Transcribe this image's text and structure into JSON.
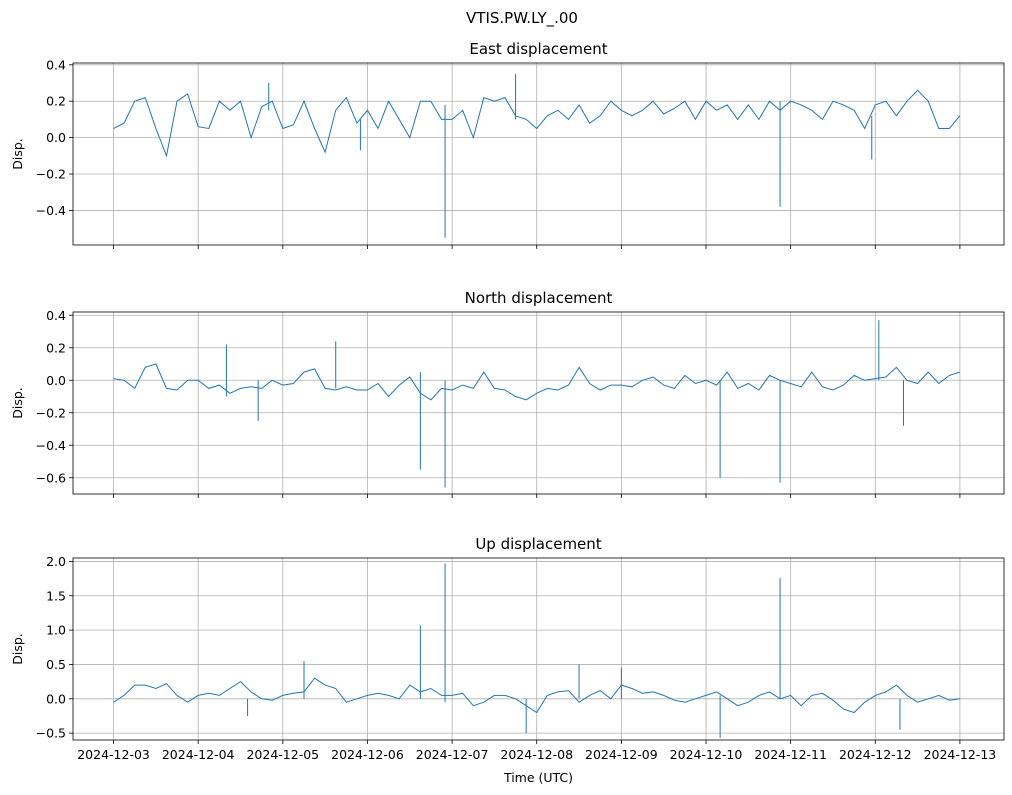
{
  "figure": {
    "suptitle": "VTIS.PW.LY_.00"
  },
  "colors": {
    "line": "#1f77b4",
    "grid": "#b0b0b0",
    "axes": "#000000"
  },
  "chart_data": [
    {
      "type": "line",
      "title": "East displacement",
      "xlabel": "",
      "ylabel": "Disp.",
      "xlim": [
        "2024-12-02T12:30",
        "2024-12-13T12:30"
      ],
      "ylim": [
        -0.59,
        0.41
      ],
      "yticks": [
        0.4,
        0.2,
        0.0,
        -0.2,
        -0.4
      ],
      "ytick_labels": [
        "0.4",
        "0.2",
        "0.0",
        "−0.2",
        "−0.4"
      ],
      "xticks": [
        "2024-12-03",
        "2024-12-04",
        "2024-12-05",
        "2024-12-06",
        "2024-12-07",
        "2024-12-08",
        "2024-12-09",
        "2024-12-10",
        "2024-12-11",
        "2024-12-12",
        "2024-12-13"
      ],
      "show_xtick_labels": false,
      "grid": true,
      "series": [
        {
          "name": "",
          "x": [
            "2024-12-03T00:00",
            "2024-12-03T03:00",
            "2024-12-03T06:00",
            "2024-12-03T09:00",
            "2024-12-03T12:00",
            "2024-12-03T15:00",
            "2024-12-03T18:00",
            "2024-12-03T21:00",
            "2024-12-04T00:00",
            "2024-12-04T03:00",
            "2024-12-04T06:00",
            "2024-12-04T09:00",
            "2024-12-04T12:00",
            "2024-12-04T15:00",
            "2024-12-04T18:00",
            "2024-12-04T21:00",
            "2024-12-05T00:00",
            "2024-12-05T03:00",
            "2024-12-05T06:00",
            "2024-12-05T09:00",
            "2024-12-05T12:00",
            "2024-12-05T15:00",
            "2024-12-05T18:00",
            "2024-12-05T21:00",
            "2024-12-06T00:00",
            "2024-12-06T03:00",
            "2024-12-06T06:00",
            "2024-12-06T09:00",
            "2024-12-06T12:00",
            "2024-12-06T15:00",
            "2024-12-06T18:00",
            "2024-12-06T21:00",
            "2024-12-07T00:00",
            "2024-12-07T03:00",
            "2024-12-07T06:00",
            "2024-12-07T09:00",
            "2024-12-07T12:00",
            "2024-12-07T15:00",
            "2024-12-07T18:00",
            "2024-12-07T21:00",
            "2024-12-08T00:00",
            "2024-12-08T03:00",
            "2024-12-08T06:00",
            "2024-12-08T09:00",
            "2024-12-08T12:00",
            "2024-12-08T15:00",
            "2024-12-08T18:00",
            "2024-12-08T21:00",
            "2024-12-09T00:00",
            "2024-12-09T03:00",
            "2024-12-09T06:00",
            "2024-12-09T09:00",
            "2024-12-09T12:00",
            "2024-12-09T15:00",
            "2024-12-09T18:00",
            "2024-12-09T21:00",
            "2024-12-10T00:00",
            "2024-12-10T03:00",
            "2024-12-10T06:00",
            "2024-12-10T09:00",
            "2024-12-10T12:00",
            "2024-12-10T15:00",
            "2024-12-10T18:00",
            "2024-12-10T21:00",
            "2024-12-11T00:00",
            "2024-12-11T03:00",
            "2024-12-11T06:00",
            "2024-12-11T09:00",
            "2024-12-11T12:00",
            "2024-12-11T15:00",
            "2024-12-11T18:00",
            "2024-12-11T21:00",
            "2024-12-12T00:00",
            "2024-12-12T03:00",
            "2024-12-12T06:00",
            "2024-12-12T09:00",
            "2024-12-12T12:00",
            "2024-12-12T15:00",
            "2024-12-12T18:00",
            "2024-12-12T21:00",
            "2024-12-13T00:00"
          ],
          "y": [
            0.05,
            0.08,
            0.2,
            0.22,
            0.05,
            -0.1,
            0.2,
            0.24,
            0.06,
            0.05,
            0.2,
            0.15,
            0.2,
            0.0,
            0.17,
            0.2,
            0.05,
            0.07,
            0.2,
            0.05,
            -0.08,
            0.15,
            0.22,
            0.08,
            0.15,
            0.05,
            0.2,
            0.1,
            0.0,
            0.2,
            0.2,
            0.1,
            0.1,
            0.15,
            0.0,
            0.22,
            0.2,
            0.22,
            0.12,
            0.1,
            0.05,
            0.12,
            0.15,
            0.1,
            0.18,
            0.08,
            0.12,
            0.2,
            0.15,
            0.12,
            0.15,
            0.2,
            0.13,
            0.16,
            0.2,
            0.1,
            0.2,
            0.15,
            0.18,
            0.1,
            0.18,
            0.1,
            0.2,
            0.15,
            0.2,
            0.18,
            0.15,
            0.1,
            0.2,
            0.18,
            0.15,
            0.05,
            0.18,
            0.2,
            0.12,
            0.2,
            0.26,
            0.2,
            0.05,
            0.05,
            0.12
          ]
        }
      ],
      "spikes": [
        {
          "x": "2024-12-06T22:00",
          "low": -0.55,
          "high": 0.18
        },
        {
          "x": "2024-12-10T21:00",
          "low": -0.38,
          "high": 0.2
        },
        {
          "x": "2024-12-07T18:00",
          "low": 0.1,
          "high": 0.35
        },
        {
          "x": "2024-12-04T20:00",
          "low": 0.15,
          "high": 0.3
        },
        {
          "x": "2024-12-11T23:00",
          "low": -0.12,
          "high": 0.12
        },
        {
          "x": "2024-12-05T22:00",
          "low": -0.07,
          "high": 0.1
        }
      ]
    },
    {
      "type": "line",
      "title": "North displacement",
      "xlabel": "",
      "ylabel": "Disp.",
      "xlim": [
        "2024-12-02T12:30",
        "2024-12-13T12:30"
      ],
      "ylim": [
        -0.7,
        0.42
      ],
      "yticks": [
        0.4,
        0.2,
        0.0,
        -0.2,
        -0.4,
        -0.6
      ],
      "ytick_labels": [
        "0.4",
        "0.2",
        "0.0",
        "−0.2",
        "−0.4",
        "−0.6"
      ],
      "xticks": [
        "2024-12-03",
        "2024-12-04",
        "2024-12-05",
        "2024-12-06",
        "2024-12-07",
        "2024-12-08",
        "2024-12-09",
        "2024-12-10",
        "2024-12-11",
        "2024-12-12",
        "2024-12-13"
      ],
      "show_xtick_labels": false,
      "grid": true,
      "series": [
        {
          "name": "",
          "x": [
            "2024-12-03T00:00",
            "2024-12-03T03:00",
            "2024-12-03T06:00",
            "2024-12-03T09:00",
            "2024-12-03T12:00",
            "2024-12-03T15:00",
            "2024-12-03T18:00",
            "2024-12-03T21:00",
            "2024-12-04T00:00",
            "2024-12-04T03:00",
            "2024-12-04T06:00",
            "2024-12-04T09:00",
            "2024-12-04T12:00",
            "2024-12-04T15:00",
            "2024-12-04T18:00",
            "2024-12-04T21:00",
            "2024-12-05T00:00",
            "2024-12-05T03:00",
            "2024-12-05T06:00",
            "2024-12-05T09:00",
            "2024-12-05T12:00",
            "2024-12-05T15:00",
            "2024-12-05T18:00",
            "2024-12-05T21:00",
            "2024-12-06T00:00",
            "2024-12-06T03:00",
            "2024-12-06T06:00",
            "2024-12-06T09:00",
            "2024-12-06T12:00",
            "2024-12-06T15:00",
            "2024-12-06T18:00",
            "2024-12-06T21:00",
            "2024-12-07T00:00",
            "2024-12-07T03:00",
            "2024-12-07T06:00",
            "2024-12-07T09:00",
            "2024-12-07T12:00",
            "2024-12-07T15:00",
            "2024-12-07T18:00",
            "2024-12-07T21:00",
            "2024-12-08T00:00",
            "2024-12-08T03:00",
            "2024-12-08T06:00",
            "2024-12-08T09:00",
            "2024-12-08T12:00",
            "2024-12-08T15:00",
            "2024-12-08T18:00",
            "2024-12-08T21:00",
            "2024-12-09T00:00",
            "2024-12-09T03:00",
            "2024-12-09T06:00",
            "2024-12-09T09:00",
            "2024-12-09T12:00",
            "2024-12-09T15:00",
            "2024-12-09T18:00",
            "2024-12-09T21:00",
            "2024-12-10T00:00",
            "2024-12-10T03:00",
            "2024-12-10T06:00",
            "2024-12-10T09:00",
            "2024-12-10T12:00",
            "2024-12-10T15:00",
            "2024-12-10T18:00",
            "2024-12-10T21:00",
            "2024-12-11T00:00",
            "2024-12-11T03:00",
            "2024-12-11T06:00",
            "2024-12-11T09:00",
            "2024-12-11T12:00",
            "2024-12-11T15:00",
            "2024-12-11T18:00",
            "2024-12-11T21:00",
            "2024-12-12T00:00",
            "2024-12-12T03:00",
            "2024-12-12T06:00",
            "2024-12-12T09:00",
            "2024-12-12T12:00",
            "2024-12-12T15:00",
            "2024-12-12T18:00",
            "2024-12-12T21:00",
            "2024-12-13T00:00"
          ],
          "y": [
            0.01,
            0.0,
            -0.05,
            0.08,
            0.1,
            -0.05,
            -0.06,
            0.0,
            0.0,
            -0.05,
            -0.03,
            -0.08,
            -0.05,
            -0.04,
            -0.05,
            0.0,
            -0.03,
            -0.02,
            0.05,
            0.07,
            -0.05,
            -0.06,
            -0.04,
            -0.06,
            -0.06,
            -0.02,
            -0.1,
            -0.03,
            0.02,
            -0.08,
            -0.12,
            -0.05,
            -0.06,
            -0.03,
            -0.05,
            0.05,
            -0.05,
            -0.06,
            -0.1,
            -0.12,
            -0.08,
            -0.05,
            -0.06,
            -0.03,
            0.08,
            -0.02,
            -0.06,
            -0.03,
            -0.03,
            -0.04,
            0.0,
            0.02,
            -0.03,
            -0.05,
            0.03,
            -0.02,
            0.0,
            -0.03,
            0.05,
            -0.05,
            -0.02,
            -0.06,
            0.03,
            0.0,
            -0.02,
            -0.04,
            0.05,
            -0.04,
            -0.06,
            -0.03,
            0.03,
            0.0,
            0.01,
            0.02,
            0.08,
            0.0,
            -0.02,
            0.05,
            -0.02,
            0.03,
            0.05
          ]
        }
      ],
      "spikes": [
        {
          "x": "2024-12-06T15:00",
          "low": -0.55,
          "high": 0.05
        },
        {
          "x": "2024-12-06T22:00",
          "low": -0.66,
          "high": 0.0
        },
        {
          "x": "2024-12-10T04:00",
          "low": -0.6,
          "high": 0.0
        },
        {
          "x": "2024-12-10T21:00",
          "low": -0.63,
          "high": 0.0
        },
        {
          "x": "2024-12-12T01:00",
          "low": 0.0,
          "high": 0.37
        },
        {
          "x": "2024-12-12T08:00",
          "low": -0.28,
          "high": 0.0
        },
        {
          "x": "2024-12-05T15:00",
          "low": -0.05,
          "high": 0.24
        },
        {
          "x": "2024-12-04T08:00",
          "low": -0.1,
          "high": 0.22
        },
        {
          "x": "2024-12-04T17:00",
          "low": -0.25,
          "high": 0.0
        }
      ]
    },
    {
      "type": "line",
      "title": "Up displacement",
      "xlabel": "Time (UTC)",
      "ylabel": "Disp.",
      "xlim": [
        "2024-12-02T12:30",
        "2024-12-13T12:30"
      ],
      "ylim": [
        -0.6,
        2.05
      ],
      "yticks": [
        2.0,
        1.5,
        1.0,
        0.5,
        0.0,
        -0.5
      ],
      "ytick_labels": [
        "2.0",
        "1.5",
        "1.0",
        "0.5",
        "0.0",
        "−0.5"
      ],
      "xticks": [
        "2024-12-03",
        "2024-12-04",
        "2024-12-05",
        "2024-12-06",
        "2024-12-07",
        "2024-12-08",
        "2024-12-09",
        "2024-12-10",
        "2024-12-11",
        "2024-12-12",
        "2024-12-13"
      ],
      "show_xtick_labels": true,
      "grid": true,
      "series": [
        {
          "name": "",
          "x": [
            "2024-12-03T00:00",
            "2024-12-03T03:00",
            "2024-12-03T06:00",
            "2024-12-03T09:00",
            "2024-12-03T12:00",
            "2024-12-03T15:00",
            "2024-12-03T18:00",
            "2024-12-03T21:00",
            "2024-12-04T00:00",
            "2024-12-04T03:00",
            "2024-12-04T06:00",
            "2024-12-04T09:00",
            "2024-12-04T12:00",
            "2024-12-04T15:00",
            "2024-12-04T18:00",
            "2024-12-04T21:00",
            "2024-12-05T00:00",
            "2024-12-05T03:00",
            "2024-12-05T06:00",
            "2024-12-05T09:00",
            "2024-12-05T12:00",
            "2024-12-05T15:00",
            "2024-12-05T18:00",
            "2024-12-05T21:00",
            "2024-12-06T00:00",
            "2024-12-06T03:00",
            "2024-12-06T06:00",
            "2024-12-06T09:00",
            "2024-12-06T12:00",
            "2024-12-06T15:00",
            "2024-12-06T18:00",
            "2024-12-06T21:00",
            "2024-12-07T00:00",
            "2024-12-07T03:00",
            "2024-12-07T06:00",
            "2024-12-07T09:00",
            "2024-12-07T12:00",
            "2024-12-07T15:00",
            "2024-12-07T18:00",
            "2024-12-07T21:00",
            "2024-12-08T00:00",
            "2024-12-08T03:00",
            "2024-12-08T06:00",
            "2024-12-08T09:00",
            "2024-12-08T12:00",
            "2024-12-08T15:00",
            "2024-12-08T18:00",
            "2024-12-08T21:00",
            "2024-12-09T00:00",
            "2024-12-09T03:00",
            "2024-12-09T06:00",
            "2024-12-09T09:00",
            "2024-12-09T12:00",
            "2024-12-09T15:00",
            "2024-12-09T18:00",
            "2024-12-09T21:00",
            "2024-12-10T00:00",
            "2024-12-10T03:00",
            "2024-12-10T06:00",
            "2024-12-10T09:00",
            "2024-12-10T12:00",
            "2024-12-10T15:00",
            "2024-12-10T18:00",
            "2024-12-10T21:00",
            "2024-12-11T00:00",
            "2024-12-11T03:00",
            "2024-12-11T06:00",
            "2024-12-11T09:00",
            "2024-12-11T12:00",
            "2024-12-11T15:00",
            "2024-12-11T18:00",
            "2024-12-11T21:00",
            "2024-12-12T00:00",
            "2024-12-12T03:00",
            "2024-12-12T06:00",
            "2024-12-12T09:00",
            "2024-12-12T12:00",
            "2024-12-12T15:00",
            "2024-12-12T18:00",
            "2024-12-12T21:00",
            "2024-12-13T00:00"
          ],
          "y": [
            -0.05,
            0.05,
            0.2,
            0.2,
            0.15,
            0.22,
            0.05,
            -0.05,
            0.05,
            0.08,
            0.05,
            0.15,
            0.25,
            0.1,
            0.0,
            -0.02,
            0.05,
            0.08,
            0.1,
            0.3,
            0.2,
            0.15,
            -0.05,
            0.0,
            0.05,
            0.08,
            0.05,
            0.0,
            0.2,
            0.1,
            0.15,
            0.05,
            0.05,
            0.08,
            -0.1,
            -0.05,
            0.05,
            0.05,
            0.0,
            -0.1,
            -0.2,
            0.05,
            0.1,
            0.12,
            -0.05,
            0.05,
            0.12,
            0.0,
            0.2,
            0.15,
            0.08,
            0.1,
            0.05,
            -0.02,
            -0.05,
            0.0,
            0.05,
            0.1,
            0.0,
            -0.1,
            -0.05,
            0.05,
            0.1,
            0.0,
            0.05,
            -0.1,
            0.05,
            0.08,
            -0.02,
            -0.15,
            -0.2,
            -0.05,
            0.05,
            0.1,
            0.2,
            0.05,
            -0.05,
            0.0,
            0.05,
            -0.02,
            0.0
          ]
        }
      ],
      "spikes": [
        {
          "x": "2024-12-06T15:00",
          "low": 0.0,
          "high": 1.07
        },
        {
          "x": "2024-12-06T22:00",
          "low": -0.05,
          "high": 1.97
        },
        {
          "x": "2024-12-10T21:00",
          "low": 0.0,
          "high": 1.76
        },
        {
          "x": "2024-12-10T04:00",
          "low": -0.57,
          "high": 0.05
        },
        {
          "x": "2024-12-07T21:00",
          "low": -0.5,
          "high": 0.0
        },
        {
          "x": "2024-12-05T06:00",
          "low": 0.0,
          "high": 0.55
        },
        {
          "x": "2024-12-08T12:00",
          "low": 0.0,
          "high": 0.5
        },
        {
          "x": "2024-12-09T00:00",
          "low": 0.0,
          "high": 0.45
        },
        {
          "x": "2024-12-12T07:00",
          "low": -0.45,
          "high": 0.0
        },
        {
          "x": "2024-12-04T14:00",
          "low": -0.25,
          "high": 0.0
        }
      ]
    }
  ]
}
